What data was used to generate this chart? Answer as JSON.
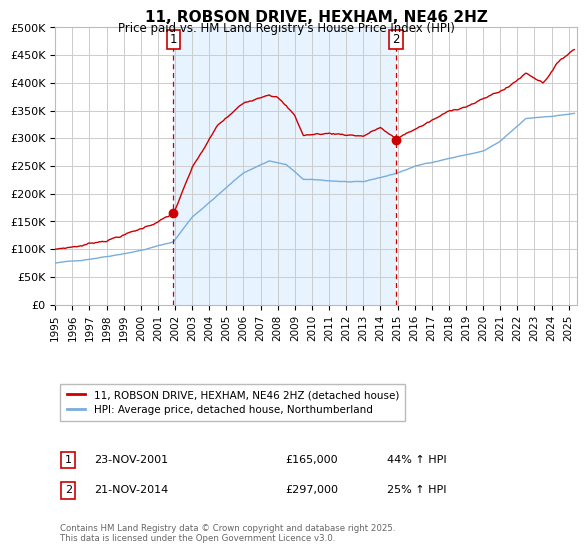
{
  "title": "11, ROBSON DRIVE, HEXHAM, NE46 2HZ",
  "subtitle": "Price paid vs. HM Land Registry's House Price Index (HPI)",
  "ylabel_ticks": [
    "£0",
    "£50K",
    "£100K",
    "£150K",
    "£200K",
    "£250K",
    "£300K",
    "£350K",
    "£400K",
    "£450K",
    "£500K"
  ],
  "ytick_values": [
    0,
    50000,
    100000,
    150000,
    200000,
    250000,
    300000,
    350000,
    400000,
    450000,
    500000
  ],
  "ylim": [
    0,
    500000
  ],
  "xlim_start": 1995.0,
  "xlim_end": 2025.5,
  "red_line_color": "#cc0000",
  "blue_line_color": "#7aaddb",
  "shade_color": "#ddeeff",
  "vline_color": "#cc0000",
  "marker1_x": 2001.9,
  "marker2_x": 2014.9,
  "legend_label_red": "11, ROBSON DRIVE, HEXHAM, NE46 2HZ (detached house)",
  "legend_label_blue": "HPI: Average price, detached house, Northumberland",
  "table_row1": [
    "1",
    "23-NOV-2001",
    "£165,000",
    "44% ↑ HPI"
  ],
  "table_row2": [
    "2",
    "21-NOV-2014",
    "£297,000",
    "25% ↑ HPI"
  ],
  "footnote": "Contains HM Land Registry data © Crown copyright and database right 2025.\nThis data is licensed under the Open Government Licence v3.0.",
  "background_color": "#ffffff",
  "grid_color": "#cccccc"
}
